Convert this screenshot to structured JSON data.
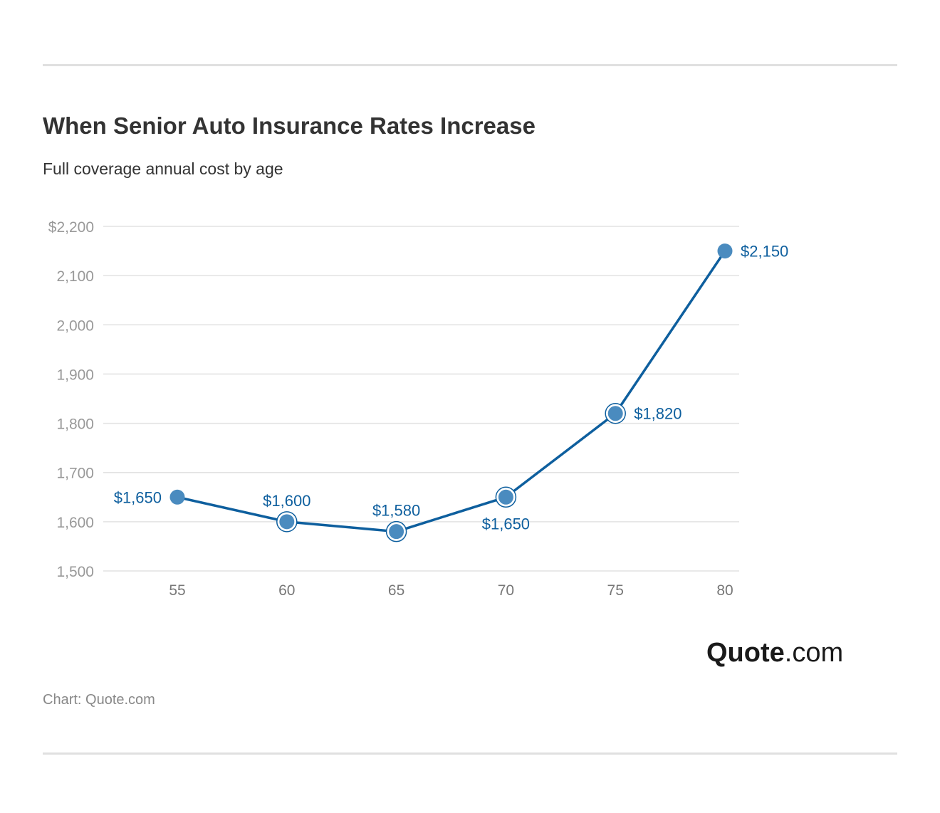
{
  "title": "When Senior Auto Insurance Rates Increase",
  "subtitle": "Full coverage annual cost by age",
  "source": "Chart: Quote.com",
  "logo": {
    "bold": "Quote",
    "light": ".com"
  },
  "chart_data": {
    "type": "line",
    "title": "When Senior Auto Insurance Rates Increase",
    "subtitle": "Full coverage annual cost by age",
    "xlabel": "",
    "ylabel": "",
    "x": [
      55,
      60,
      65,
      70,
      75,
      80
    ],
    "series": [
      {
        "values": [
          1650,
          1600,
          1580,
          1650,
          1820,
          2150
        ],
        "data_labels": [
          "$1,650",
          "$1,600",
          "$1,580",
          "$1,650",
          "$1,820",
          "$2,150"
        ]
      }
    ],
    "ylim": [
      1500,
      2200
    ],
    "y_ticks": [
      1500,
      1600,
      1700,
      1800,
      1900,
      2000,
      2100,
      2200
    ],
    "y_tick_labels": [
      "1,500",
      "1,600",
      "1,700",
      "1,800",
      "1,900",
      "2,000",
      "2,100",
      "$2,200"
    ],
    "x_tick_labels": [
      "55",
      "60",
      "65",
      "70",
      "75",
      "80"
    ],
    "grid": true,
    "color": "#0e5f9e",
    "marker_color": "#4a8bbf"
  }
}
